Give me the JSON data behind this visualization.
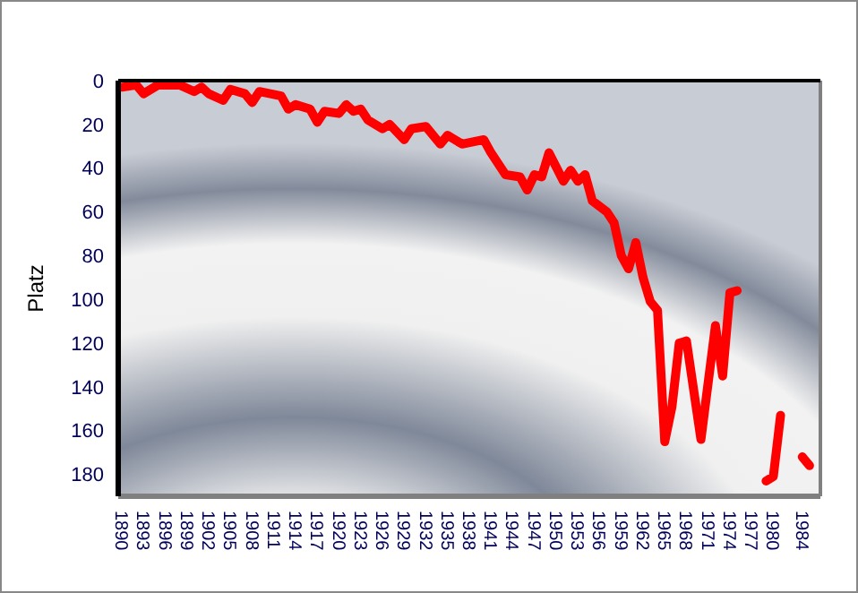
{
  "chart_data": {
    "type": "line",
    "ylabel": "Platz",
    "ylim": [
      190,
      0
    ],
    "yticks": [
      0,
      20,
      40,
      60,
      80,
      100,
      120,
      140,
      160,
      180
    ],
    "xlim": [
      1889.5,
      1986.5
    ],
    "xticks": [
      1890,
      1893,
      1896,
      1899,
      1902,
      1905,
      1908,
      1911,
      1914,
      1917,
      1920,
      1923,
      1926,
      1929,
      1932,
      1935,
      1938,
      1941,
      1944,
      1947,
      1950,
      1953,
      1956,
      1959,
      1962,
      1965,
      1968,
      1971,
      1974,
      1977,
      1980,
      1984
    ],
    "grid": false,
    "marker": "none",
    "line_style": "solid",
    "series": [
      {
        "color": "#ff0000",
        "x": [
          1890,
          1892,
          1893,
          1895,
          1898,
          1900,
          1901,
          1902,
          1904,
          1905,
          1907,
          1908,
          1909,
          1912,
          1913,
          1914,
          1916,
          1917,
          1918,
          1920,
          1921,
          1922,
          1923,
          1924,
          1926,
          1927,
          1929,
          1930,
          1932,
          1934,
          1935,
          1937,
          1940,
          1941,
          1943,
          1945,
          1946,
          1947,
          1948,
          1949,
          1951,
          1952,
          1953,
          1954,
          1955,
          1957,
          1958,
          1959,
          1960,
          1961,
          1962,
          1963,
          1964,
          1965,
          1966,
          1967,
          1968,
          1970,
          1972,
          1973,
          1974,
          1975,
          1977,
          1979,
          1980,
          1981,
          1982,
          1984,
          1985
        ],
        "values": [
          3,
          2,
          6,
          2,
          2,
          5,
          3,
          6,
          9,
          4,
          6,
          10,
          5,
          7,
          13,
          11,
          13,
          19,
          14,
          15,
          11,
          14,
          13,
          18,
          22,
          20,
          27,
          22,
          21,
          29,
          25,
          29,
          27,
          33,
          43,
          44,
          50,
          43,
          44,
          33,
          46,
          41,
          46,
          43,
          55,
          60,
          65,
          80,
          86,
          74,
          90,
          101,
          105,
          165,
          149,
          120,
          119,
          164,
          112,
          135,
          97,
          96,
          null,
          183,
          181,
          153,
          null,
          172,
          176
        ]
      }
    ]
  }
}
